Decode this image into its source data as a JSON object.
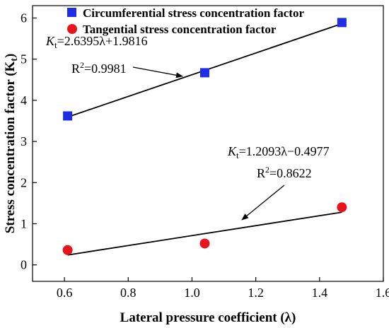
{
  "chart_data": {
    "type": "scatter",
    "xlabel": "Lateral pressure coefficient (λ)",
    "ylabel": "Stress concentration factor (K",
    "ylabel_sub": "t",
    "ylabel_close": ")",
    "xlim": [
      0.5,
      1.6
    ],
    "ylim": [
      -0.4,
      6.3
    ],
    "xticks": [
      "0.6",
      "0.8",
      "1.0",
      "1.2",
      "1.4",
      "1.6"
    ],
    "xtick_values": [
      0.6,
      0.8,
      1.0,
      1.2,
      1.4,
      1.6
    ],
    "yticks": [
      "0",
      "1",
      "2",
      "3",
      "4",
      "5",
      "6"
    ],
    "ytick_values": [
      0,
      1,
      2,
      3,
      4,
      5,
      6
    ],
    "grid": false,
    "legend_position": "top",
    "series": [
      {
        "name": "Circumferential stress concentration factor",
        "marker": "square",
        "color": "#1f2ee6",
        "x": [
          0.61,
          1.04,
          1.47
        ],
        "y": [
          3.62,
          4.67,
          5.89
        ],
        "fit": {
          "x": [
            0.61,
            1.47
          ],
          "y": [
            3.592,
            5.862
          ]
        }
      },
      {
        "name": "Tangential stress concentration factor",
        "marker": "circle",
        "color": "#e8141c",
        "x": [
          0.61,
          1.04,
          1.47
        ],
        "y": [
          0.36,
          0.52,
          1.4
        ],
        "fit": {
          "x": [
            0.61,
            1.47
          ],
          "y": [
            0.24,
            1.28
          ]
        }
      }
    ],
    "annotations": [
      {
        "id": "eq1",
        "prefix": "K",
        "sub": "t",
        "body": "=2.6395λ+1.9816"
      },
      {
        "id": "r1",
        "prefix": "R",
        "sup": "2",
        "body": "=0.9981"
      },
      {
        "id": "eq2",
        "prefix": "K",
        "sub": "t",
        "body": "=1.2093λ−0.4977"
      },
      {
        "id": "r2",
        "prefix": "R",
        "sup": "2",
        "body": "=0.8622"
      }
    ]
  }
}
